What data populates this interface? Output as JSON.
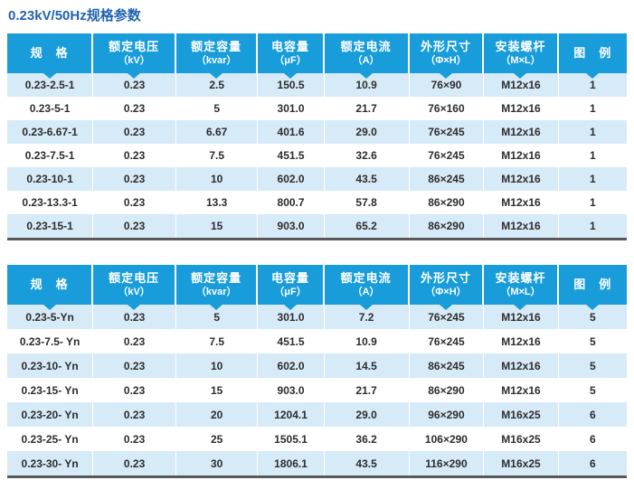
{
  "page_title": "0.23kV/50Hz规格参数",
  "colors": {
    "header_bg": "#189dda",
    "row_alt": "#d7eaf7",
    "title_color": "#2162b0",
    "border_dark": "#58595b",
    "header_text": "#ffffff",
    "cell_text": "#2d2d2d"
  },
  "tables": [
    {
      "name": "spec-table-1",
      "columns": [
        {
          "label": "规　格",
          "sub": ""
        },
        {
          "label": "额定电压",
          "sub": "（kV）"
        },
        {
          "label": "额定容量",
          "sub": "（kvar）"
        },
        {
          "label": "电容量",
          "sub": "（μF）"
        },
        {
          "label": "额定电流",
          "sub": "（A）"
        },
        {
          "label": "外形尺寸",
          "sub": "（Φ×H）"
        },
        {
          "label": "安装螺杆",
          "sub": "（M×L）"
        },
        {
          "label": "图　例",
          "sub": ""
        }
      ],
      "rows": [
        [
          "0.23-2.5-1",
          "0.23",
          "2.5",
          "150.5",
          "10.9",
          "76×90",
          "M12x16",
          "1"
        ],
        [
          "0.23-5-1",
          "0.23",
          "5",
          "301.0",
          "21.7",
          "76×160",
          "M12x16",
          "1"
        ],
        [
          "0.23-6.67-1",
          "0.23",
          "6.67",
          "401.6",
          "29.0",
          "76×245",
          "M12x16",
          "1"
        ],
        [
          "0.23-7.5-1",
          "0.23",
          "7.5",
          "451.5",
          "32.6",
          "76×245",
          "M12x16",
          "1"
        ],
        [
          "0.23-10-1",
          "0.23",
          "10",
          "602.0",
          "43.5",
          "86×245",
          "M12x16",
          "1"
        ],
        [
          "0.23-13.3-1",
          "0.23",
          "13.3",
          "800.7",
          "57.8",
          "86×290",
          "M12x16",
          "1"
        ],
        [
          "0.23-15-1",
          "0.23",
          "15",
          "903.0",
          "65.2",
          "86×290",
          "M12x16",
          "1"
        ]
      ]
    },
    {
      "name": "spec-table-2",
      "columns": [
        {
          "label": "规　格",
          "sub": ""
        },
        {
          "label": "额定电压",
          "sub": "（kV）"
        },
        {
          "label": "额定容量",
          "sub": "（kvar）"
        },
        {
          "label": "电容量",
          "sub": "（μF）"
        },
        {
          "label": "额定电流",
          "sub": "（A）"
        },
        {
          "label": "外形尺寸",
          "sub": "（Φ×H）"
        },
        {
          "label": "安装螺杆",
          "sub": "（M×L）"
        },
        {
          "label": "图　例",
          "sub": ""
        }
      ],
      "rows": [
        [
          "0.23-5-Yn",
          "0.23",
          "5",
          "301.0",
          "7.2",
          "76×245",
          "M12x16",
          "5"
        ],
        [
          "0.23-7.5- Yn",
          "0.23",
          "7.5",
          "451.5",
          "10.9",
          "76×245",
          "M12x16",
          "5"
        ],
        [
          "0.23-10- Yn",
          "0.23",
          "10",
          "602.0",
          "14.5",
          "86×245",
          "M12x16",
          "5"
        ],
        [
          "0.23-15- Yn",
          "0.23",
          "15",
          "903.0",
          "21.7",
          "86×290",
          "M12x16",
          "5"
        ],
        [
          "0.23-20- Yn",
          "0.23",
          "20",
          "1204.1",
          "29.0",
          "96×290",
          "M16x25",
          "6"
        ],
        [
          "0.23-25- Yn",
          "0.23",
          "25",
          "1505.1",
          "36.2",
          "106×290",
          "M16x25",
          "6"
        ],
        [
          "0.23-30- Yn",
          "0.23",
          "30",
          "1806.1",
          "43.5",
          "116×290",
          "M16x25",
          "6"
        ]
      ]
    }
  ]
}
